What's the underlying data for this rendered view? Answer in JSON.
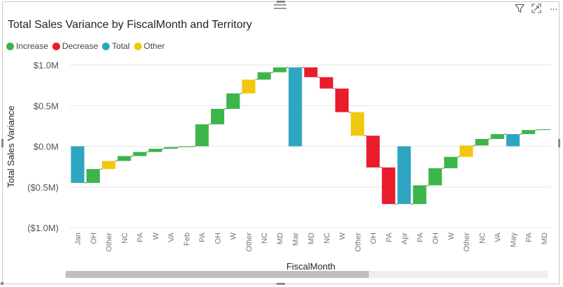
{
  "toolbar": {
    "icons": [
      "filter-icon",
      "focus-mode-icon",
      "more-options-icon"
    ],
    "more_glyph": "···"
  },
  "chart_data": {
    "type": "waterfall",
    "title": "Total Sales Variance by FiscalMonth and Territory",
    "xlabel": "FiscalMonth",
    "ylabel": "Total Sales Variance",
    "ylim": [
      -1.0,
      1.0
    ],
    "y_units": "$M",
    "yticks": [
      1.0,
      0.5,
      0.0,
      -0.5,
      -1.0
    ],
    "ytick_labels": [
      "$1.0M",
      "$0.5M",
      "$0.0M",
      "($0.5M)",
      "($1.0M)"
    ],
    "grid": true,
    "legend": {
      "position": "top-left",
      "entries": [
        {
          "name": "Increase",
          "color": "#3cb54a"
        },
        {
          "name": "Decrease",
          "color": "#e81c2b"
        },
        {
          "name": "Total",
          "color": "#2fa6c1"
        },
        {
          "name": "Other",
          "color": "#f2c80f"
        }
      ]
    },
    "categories": [
      "Jan",
      "OH",
      "Other",
      "NC",
      "PA",
      "W",
      "VA",
      "Feb",
      "PA",
      "OH",
      "W",
      "Other",
      "NC",
      "MD",
      "Mar",
      "MD",
      "NC",
      "W",
      "Other",
      "OH",
      "PA",
      "Apr",
      "PA",
      "OH",
      "W",
      "Other",
      "NC",
      "VA",
      "May",
      "PA",
      "MD"
    ],
    "bars": [
      {
        "kind": "Total",
        "start": 0,
        "end": -0.45
      },
      {
        "kind": "Increase",
        "start": -0.45,
        "end": -0.28
      },
      {
        "kind": "Other",
        "start": -0.28,
        "end": -0.18
      },
      {
        "kind": "Increase",
        "start": -0.18,
        "end": -0.12
      },
      {
        "kind": "Increase",
        "start": -0.12,
        "end": -0.07
      },
      {
        "kind": "Increase",
        "start": -0.07,
        "end": -0.03
      },
      {
        "kind": "Increase",
        "start": -0.03,
        "end": -0.01
      },
      {
        "kind": "Increase",
        "start": -0.01,
        "end": 0.0
      },
      {
        "kind": "Increase",
        "start": 0.0,
        "end": 0.27
      },
      {
        "kind": "Increase",
        "start": 0.27,
        "end": 0.46
      },
      {
        "kind": "Increase",
        "start": 0.46,
        "end": 0.65
      },
      {
        "kind": "Other",
        "start": 0.65,
        "end": 0.82
      },
      {
        "kind": "Increase",
        "start": 0.82,
        "end": 0.91
      },
      {
        "kind": "Increase",
        "start": 0.91,
        "end": 0.97
      },
      {
        "kind": "Total",
        "start": 0,
        "end": 0.97
      },
      {
        "kind": "Decrease",
        "start": 0.97,
        "end": 0.85
      },
      {
        "kind": "Decrease",
        "start": 0.85,
        "end": 0.71
      },
      {
        "kind": "Decrease",
        "start": 0.71,
        "end": 0.42
      },
      {
        "kind": "Other",
        "start": 0.42,
        "end": 0.13
      },
      {
        "kind": "Decrease",
        "start": 0.13,
        "end": -0.26
      },
      {
        "kind": "Decrease",
        "start": -0.26,
        "end": -0.71
      },
      {
        "kind": "Total",
        "start": 0,
        "end": -0.71
      },
      {
        "kind": "Increase",
        "start": -0.71,
        "end": -0.48
      },
      {
        "kind": "Increase",
        "start": -0.48,
        "end": -0.27
      },
      {
        "kind": "Increase",
        "start": -0.27,
        "end": -0.13
      },
      {
        "kind": "Other",
        "start": -0.13,
        "end": 0.01
      },
      {
        "kind": "Increase",
        "start": 0.01,
        "end": 0.09
      },
      {
        "kind": "Increase",
        "start": 0.09,
        "end": 0.15
      },
      {
        "kind": "Total",
        "start": 0,
        "end": 0.15
      },
      {
        "kind": "Increase",
        "start": 0.15,
        "end": 0.2
      },
      {
        "kind": "Increase",
        "start": 0.2,
        "end": 0.21
      }
    ]
  }
}
